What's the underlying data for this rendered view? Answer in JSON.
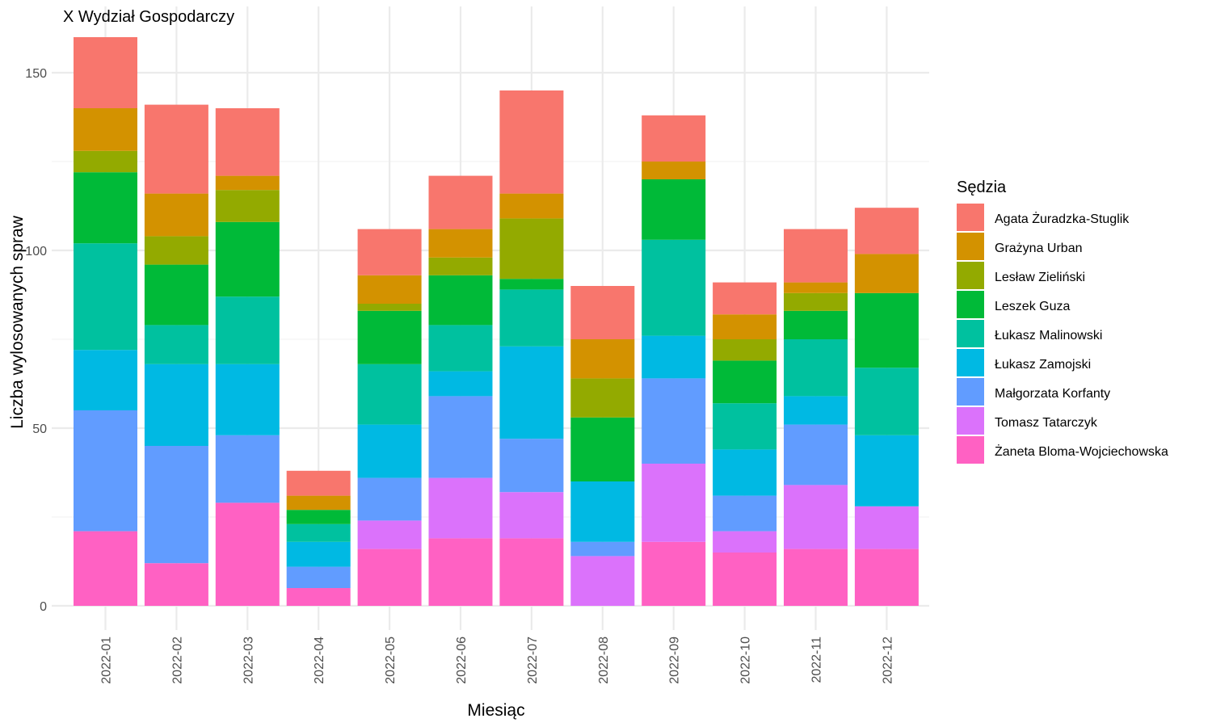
{
  "chart_data": {
    "type": "bar",
    "stacked": true,
    "title": "X Wydział Gospodarczy",
    "xlabel": "Miesiąc",
    "ylabel": "Liczba wylosowanych spraw",
    "ylim": [
      0,
      160
    ],
    "yticks": [
      0,
      50,
      100,
      150
    ],
    "grid": true,
    "legend_title": "Sędzia",
    "legend_position": "right",
    "categories": [
      "2022-01",
      "2022-02",
      "2022-03",
      "2022-04",
      "2022-05",
      "2022-06",
      "2022-07",
      "2022-08",
      "2022-09",
      "2022-10",
      "2022-11",
      "2022-12"
    ],
    "series": [
      {
        "name": "Agata Żuradzka-Stuglik",
        "color": "#F8766D",
        "values": [
          20,
          25,
          19,
          7,
          13,
          15,
          29,
          15,
          13,
          9,
          15,
          13
        ]
      },
      {
        "name": "Grażyna Urban",
        "color": "#D39200",
        "values": [
          12,
          12,
          4,
          4,
          8,
          8,
          7,
          11,
          5,
          7,
          3,
          11
        ]
      },
      {
        "name": "Lesław Zieliński",
        "color": "#93AA00",
        "values": [
          6,
          8,
          9,
          0,
          2,
          5,
          17,
          11,
          0,
          6,
          5,
          0
        ]
      },
      {
        "name": "Leszek Guza",
        "color": "#00BA38",
        "values": [
          20,
          17,
          21,
          4,
          15,
          14,
          3,
          18,
          17,
          12,
          8,
          21
        ]
      },
      {
        "name": "Łukasz Malinowski",
        "color": "#00C19F",
        "values": [
          30,
          11,
          19,
          5,
          17,
          13,
          16,
          0,
          27,
          13,
          16,
          19
        ]
      },
      {
        "name": "Łukasz Zamojski",
        "color": "#00B9E3",
        "values": [
          17,
          23,
          20,
          7,
          15,
          7,
          26,
          17,
          12,
          13,
          8,
          20
        ]
      },
      {
        "name": "Małgorzata Korfanty",
        "color": "#619CFF",
        "values": [
          34,
          33,
          19,
          6,
          12,
          23,
          15,
          4,
          24,
          10,
          17,
          0
        ]
      },
      {
        "name": "Tomasz Tatarczyk",
        "color": "#DB72FB",
        "values": [
          0,
          0,
          0,
          0,
          8,
          17,
          13,
          14,
          22,
          6,
          18,
          12
        ]
      },
      {
        "name": "Żaneta Bloma-Wojciechowska",
        "color": "#FF61C3",
        "values": [
          21,
          12,
          29,
          5,
          16,
          19,
          19,
          0,
          18,
          15,
          16,
          16
        ]
      }
    ]
  }
}
